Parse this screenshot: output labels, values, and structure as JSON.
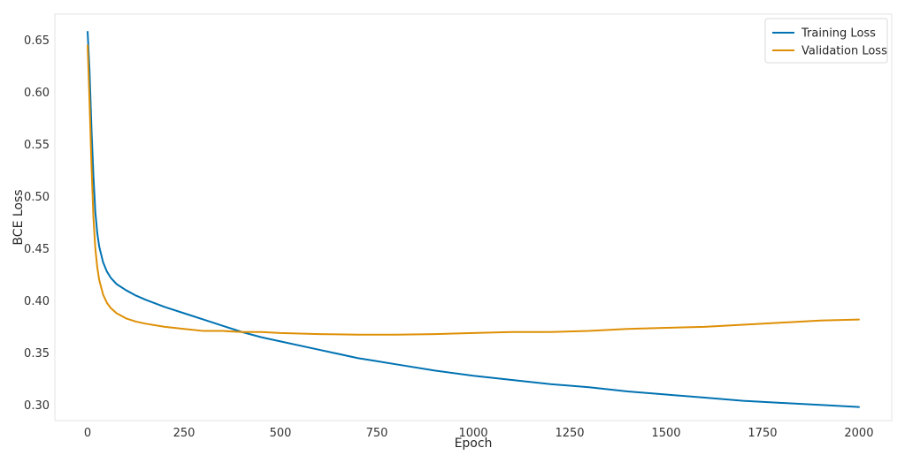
{
  "chart_data": {
    "type": "line",
    "title": "",
    "xlabel": "Epoch",
    "ylabel": "BCE Loss",
    "xlim": [
      -85,
      2085
    ],
    "ylim": [
      0.285,
      0.675
    ],
    "x_ticks": [
      0,
      250,
      500,
      750,
      1000,
      1250,
      1500,
      1750,
      2000
    ],
    "y_ticks": [
      0.3,
      0.35,
      0.4,
      0.45,
      0.5,
      0.55,
      0.6,
      0.65
    ],
    "x_tick_labels": [
      "0",
      "250",
      "500",
      "750",
      "1000",
      "1250",
      "1500",
      "1750",
      "2000"
    ],
    "y_tick_labels": [
      "0.30",
      "0.35",
      "0.40",
      "0.45",
      "0.50",
      "0.55",
      "0.60",
      "0.65"
    ],
    "grid": true,
    "legend_position": "top-right",
    "series": [
      {
        "name": "Training Loss",
        "color": "#0072b2",
        "x": [
          0,
          5,
          10,
          15,
          20,
          25,
          30,
          40,
          50,
          60,
          75,
          100,
          125,
          150,
          200,
          250,
          300,
          350,
          400,
          450,
          500,
          600,
          700,
          750,
          800,
          900,
          1000,
          1100,
          1200,
          1300,
          1400,
          1500,
          1600,
          1700,
          1800,
          1900,
          2000
        ],
        "values": [
          0.658,
          0.62,
          0.565,
          0.52,
          0.485,
          0.465,
          0.452,
          0.437,
          0.428,
          0.422,
          0.416,
          0.41,
          0.405,
          0.401,
          0.394,
          0.388,
          0.382,
          0.376,
          0.37,
          0.365,
          0.361,
          0.353,
          0.345,
          0.342,
          0.339,
          0.333,
          0.328,
          0.324,
          0.32,
          0.317,
          0.313,
          0.31,
          0.307,
          0.304,
          0.302,
          0.3,
          0.298
        ]
      },
      {
        "name": "Validation Loss",
        "color": "#de8f05",
        "x": [
          0,
          5,
          10,
          15,
          20,
          25,
          30,
          40,
          50,
          60,
          75,
          100,
          125,
          150,
          200,
          250,
          300,
          350,
          400,
          450,
          500,
          600,
          700,
          750,
          800,
          900,
          1000,
          1100,
          1200,
          1300,
          1400,
          1500,
          1600,
          1700,
          1800,
          1900,
          2000
        ],
        "values": [
          0.645,
          0.59,
          0.53,
          0.48,
          0.45,
          0.432,
          0.42,
          0.406,
          0.398,
          0.393,
          0.388,
          0.383,
          0.38,
          0.378,
          0.375,
          0.373,
          0.371,
          0.371,
          0.37,
          0.37,
          0.369,
          0.368,
          0.3675,
          0.3675,
          0.3675,
          0.368,
          0.369,
          0.37,
          0.37,
          0.371,
          0.373,
          0.374,
          0.375,
          0.377,
          0.379,
          0.381,
          0.382
        ]
      }
    ]
  }
}
